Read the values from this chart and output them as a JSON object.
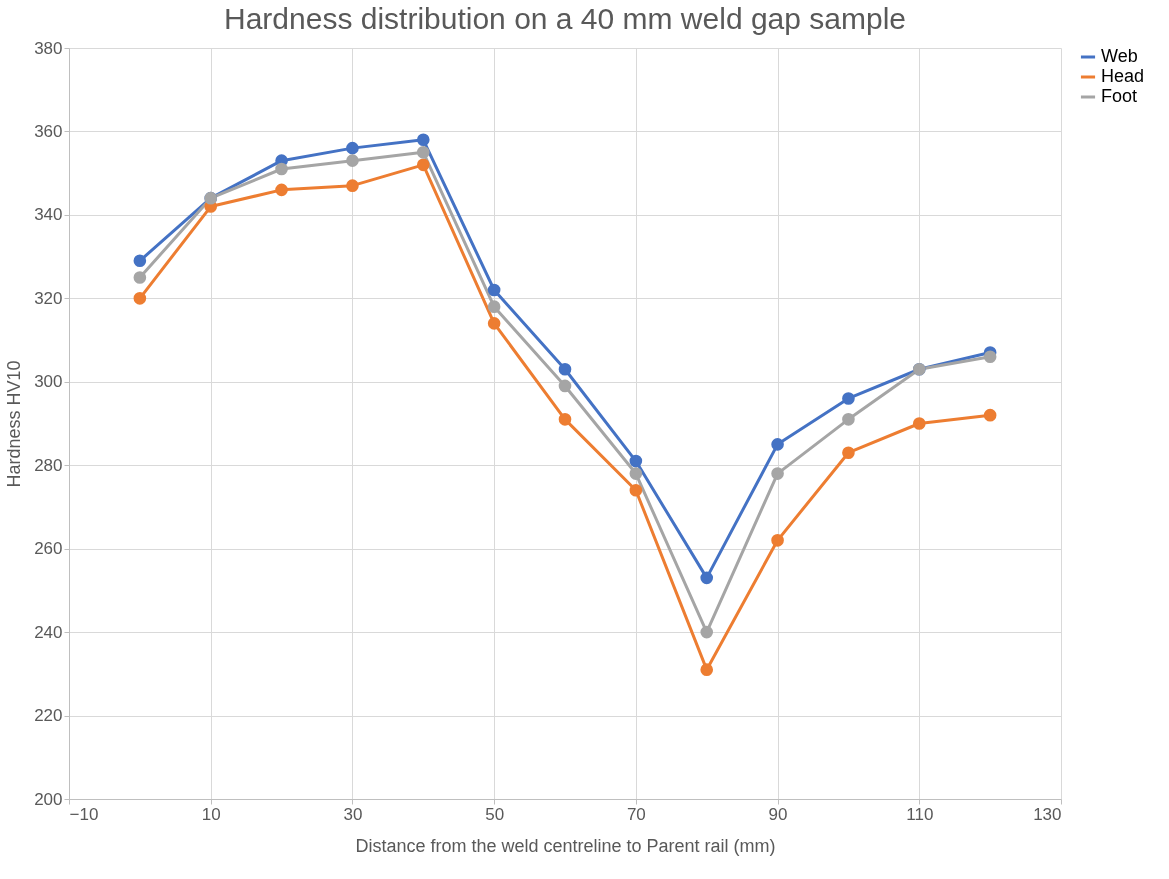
{
  "chart_data": {
    "type": "line",
    "title": "Hardness distribution on  a 40 mm weld gap sample",
    "xlabel": "Distance from the weld centreline to Parent rail (mm)",
    "ylabel": "Hardness HV10",
    "x": [
      0,
      10,
      20,
      30,
      40,
      50,
      60,
      70,
      80,
      90,
      100,
      110,
      120
    ],
    "series": [
      {
        "name": "Web",
        "color": "#4472c4",
        "values": [
          329,
          344,
          353,
          356,
          358,
          322,
          303,
          281,
          253,
          285,
          296,
          303,
          307
        ]
      },
      {
        "name": "Head",
        "color": "#ed7d31",
        "values": [
          320,
          342,
          346,
          347,
          352,
          314,
          291,
          274,
          231,
          262,
          283,
          290,
          292
        ]
      },
      {
        "name": "Foot",
        "color": "#a5a5a5",
        "values": [
          325,
          344,
          351,
          353,
          355,
          318,
          299,
          278,
          240,
          278,
          291,
          303,
          306
        ]
      }
    ],
    "xlim": [
      -10,
      130
    ],
    "xticks": [
      -10,
      10,
      30,
      50,
      70,
      90,
      110,
      130
    ],
    "ylim": [
      200,
      380
    ],
    "yticks": [
      200,
      220,
      240,
      260,
      280,
      300,
      320,
      340,
      360,
      380
    ],
    "grid": true,
    "legend": "right",
    "marker": "circle",
    "line_style": "solid"
  }
}
